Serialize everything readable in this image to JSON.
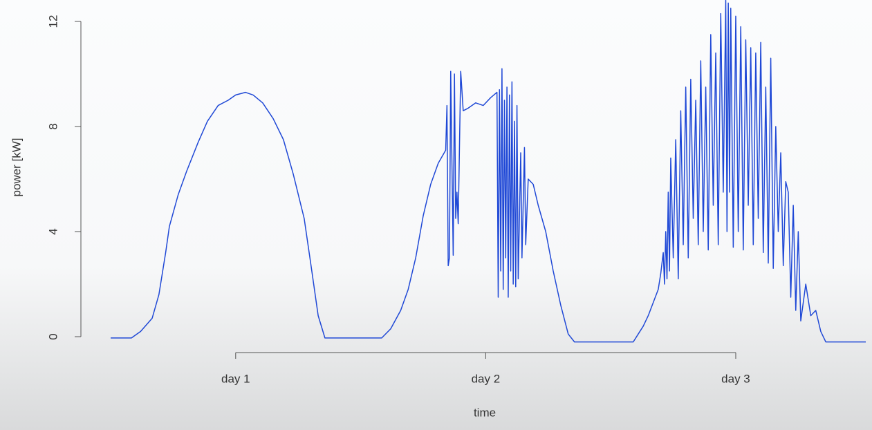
{
  "chart_data": {
    "type": "line",
    "x_label": "time",
    "y_label": "power [kW]",
    "x": [
      0.5,
      0.55,
      0.583,
      0.62,
      0.666,
      0.693,
      0.72,
      0.735,
      0.77,
      0.804,
      0.85,
      0.887,
      0.93,
      0.97,
      1.0,
      1.039,
      1.07,
      1.108,
      1.15,
      1.191,
      1.23,
      1.274,
      1.3,
      1.33,
      1.357,
      1.45,
      1.584,
      1.62,
      1.66,
      1.69,
      1.72,
      1.75,
      1.78,
      1.81,
      1.84,
      1.845,
      1.85,
      1.855,
      1.86,
      1.87,
      1.875,
      1.88,
      1.885,
      1.89,
      1.9,
      1.91,
      1.93,
      1.96,
      1.99,
      2.02,
      2.045,
      2.05,
      2.055,
      2.06,
      2.065,
      2.07,
      2.075,
      2.08,
      2.085,
      2.09,
      2.095,
      2.1,
      2.105,
      2.11,
      2.115,
      2.12,
      2.125,
      2.13,
      2.14,
      2.145,
      2.155,
      2.16,
      2.17,
      2.19,
      2.21,
      2.24,
      2.27,
      2.3,
      2.33,
      2.355,
      2.4,
      2.5,
      2.59,
      2.61,
      2.63,
      2.65,
      2.67,
      2.69,
      2.7,
      2.71,
      2.715,
      2.72,
      2.725,
      2.73,
      2.735,
      2.74,
      2.75,
      2.76,
      2.77,
      2.78,
      2.79,
      2.8,
      2.81,
      2.82,
      2.83,
      2.84,
      2.85,
      2.86,
      2.87,
      2.88,
      2.89,
      2.9,
      2.91,
      2.92,
      2.93,
      2.94,
      2.95,
      2.96,
      2.965,
      2.97,
      2.975,
      2.98,
      2.99,
      3.0,
      3.01,
      3.02,
      3.03,
      3.04,
      3.05,
      3.06,
      3.07,
      3.08,
      3.09,
      3.1,
      3.11,
      3.12,
      3.13,
      3.14,
      3.15,
      3.16,
      3.17,
      3.18,
      3.19,
      3.2,
      3.21,
      3.22,
      3.23,
      3.24,
      3.25,
      3.26,
      3.28,
      3.3,
      3.32,
      3.34,
      3.36,
      3.4,
      3.45,
      3.52
    ],
    "series": [
      {
        "color": "#1f48d6",
        "values": [
          -0.05,
          -0.05,
          -0.05,
          0.2,
          0.7,
          1.6,
          3.2,
          4.2,
          5.4,
          6.3,
          7.4,
          8.2,
          8.8,
          9.0,
          9.2,
          9.3,
          9.2,
          8.9,
          8.3,
          7.5,
          6.2,
          4.5,
          2.8,
          0.8,
          -0.05,
          -0.05,
          -0.05,
          0.3,
          1.0,
          1.8,
          3.0,
          4.6,
          5.8,
          6.6,
          7.1,
          8.8,
          2.7,
          3.0,
          10.1,
          3.1,
          10.0,
          4.5,
          5.5,
          4.3,
          10.1,
          8.6,
          8.7,
          8.9,
          8.8,
          9.1,
          9.3,
          1.5,
          9.4,
          2.5,
          10.2,
          1.8,
          9.0,
          3.0,
          9.5,
          1.5,
          9.2,
          2.5,
          9.7,
          2.0,
          8.2,
          1.9,
          8.8,
          2.2,
          7.0,
          3.0,
          7.2,
          3.5,
          6.0,
          5.8,
          5.0,
          4.0,
          2.5,
          1.2,
          0.1,
          -0.2,
          -0.2,
          -0.2,
          -0.2,
          0.1,
          0.4,
          0.8,
          1.3,
          1.8,
          2.4,
          3.2,
          2.0,
          4.0,
          2.2,
          5.5,
          2.5,
          6.8,
          3.0,
          7.5,
          2.2,
          8.6,
          3.5,
          9.5,
          3.0,
          9.8,
          4.5,
          9.0,
          3.5,
          10.5,
          4.0,
          9.5,
          3.3,
          11.5,
          5.0,
          10.8,
          3.5,
          12.3,
          5.5,
          12.8,
          4.0,
          12.7,
          5.5,
          12.5,
          3.4,
          12.2,
          4.0,
          11.8,
          3.3,
          11.3,
          5.0,
          11.0,
          3.5,
          10.8,
          4.5,
          11.2,
          3.2,
          9.5,
          2.8,
          10.6,
          2.6,
          8.0,
          4.0,
          7.0,
          2.7,
          5.9,
          5.5,
          1.5,
          5.0,
          1.0,
          4.0,
          0.6,
          2.0,
          0.8,
          1.0,
          0.2,
          -0.2,
          -0.2,
          -0.2,
          -0.2
        ]
      }
    ],
    "xlim": [
      0.5,
      3.52
    ],
    "ylim": [
      0,
      12
    ],
    "xticks": [
      {
        "value": 1,
        "label": "day 1"
      },
      {
        "value": 2,
        "label": "day 2"
      },
      {
        "value": 3,
        "label": "day 3"
      }
    ],
    "yticks": [
      0,
      4,
      8,
      12
    ]
  }
}
